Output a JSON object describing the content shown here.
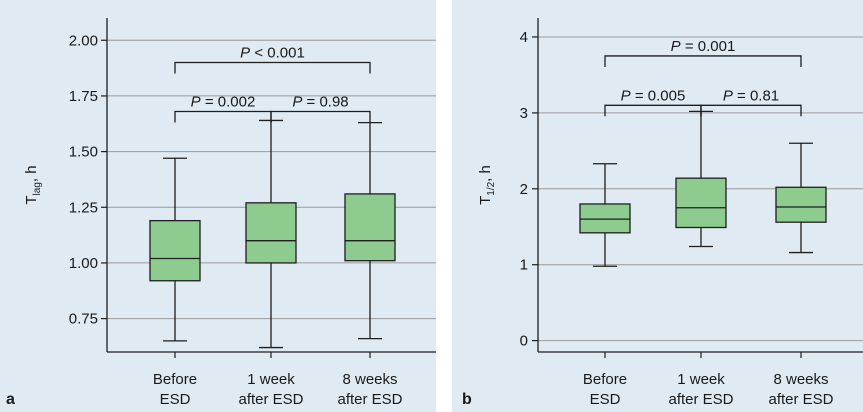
{
  "colors": {
    "panel_bg": "#dfeaf3",
    "box_fill": "#8dcb8f",
    "box_stroke": "#1e1e1e",
    "grid": "#9a9a9a",
    "text": "#1a1a1a"
  },
  "chart_data": [
    {
      "type": "box",
      "panel_letter": "a",
      "ylabel": {
        "main": "T",
        "sub": "lag",
        "unit": ", h"
      },
      "ylim": [
        0.6,
        2.1
      ],
      "yticks": [
        0.75,
        1.0,
        1.25,
        1.5,
        1.75,
        2.0
      ],
      "ytick_labels": [
        "0.75",
        "1.00",
        "1.25",
        "1.50",
        "1.75",
        "2.00"
      ],
      "grid": true,
      "categories": [
        {
          "line1": "Before",
          "line2": "ESD"
        },
        {
          "line1": "1 week",
          "line2": "after ESD"
        },
        {
          "line1": "8 weeks",
          "line2": "after ESD"
        }
      ],
      "boxes": [
        {
          "min": 0.65,
          "q1": 0.92,
          "median": 1.02,
          "q3": 1.19,
          "max": 1.47
        },
        {
          "min": 0.62,
          "q1": 1.0,
          "median": 1.1,
          "q3": 1.27,
          "max": 1.64
        },
        {
          "min": 0.66,
          "q1": 1.01,
          "median": 1.1,
          "q3": 1.31,
          "max": 1.63
        }
      ],
      "annotations": [
        {
          "from": 0,
          "to": 2,
          "level": 1.9,
          "p": "P",
          "rest": " < 0.001"
        },
        {
          "from": 0,
          "to": 1,
          "level": 1.68,
          "p": "P",
          "rest": " = 0.002"
        },
        {
          "from": 1,
          "to": 2,
          "level": 1.68,
          "p": "P",
          "rest": " = 0.98"
        }
      ]
    },
    {
      "type": "box",
      "panel_letter": "b",
      "ylabel": {
        "main": "T",
        "sub": "1/2",
        "unit": ", h"
      },
      "ylim": [
        -0.15,
        4.25
      ],
      "yticks": [
        0,
        1,
        2,
        3,
        4
      ],
      "ytick_labels": [
        "0",
        "1",
        "2",
        "3",
        "4"
      ],
      "grid": true,
      "categories": [
        {
          "line1": "Before",
          "line2": "ESD"
        },
        {
          "line1": "1 week",
          "line2": "after ESD"
        },
        {
          "line1": "8 weeks",
          "line2": "after ESD"
        }
      ],
      "boxes": [
        {
          "min": 0.98,
          "q1": 1.42,
          "median": 1.6,
          "q3": 1.8,
          "max": 2.33
        },
        {
          "min": 1.24,
          "q1": 1.49,
          "median": 1.75,
          "q3": 2.14,
          "max": 3.02
        },
        {
          "min": 1.16,
          "q1": 1.56,
          "median": 1.76,
          "q3": 2.02,
          "max": 2.6
        }
      ],
      "annotations": [
        {
          "from": 0,
          "to": 2,
          "level": 3.75,
          "p": "P",
          "rest": " = 0.001"
        },
        {
          "from": 0,
          "to": 1,
          "level": 3.1,
          "p": "P",
          "rest": " = 0.005"
        },
        {
          "from": 1,
          "to": 2,
          "level": 3.1,
          "p": "P",
          "rest": " = 0.81"
        }
      ]
    }
  ]
}
